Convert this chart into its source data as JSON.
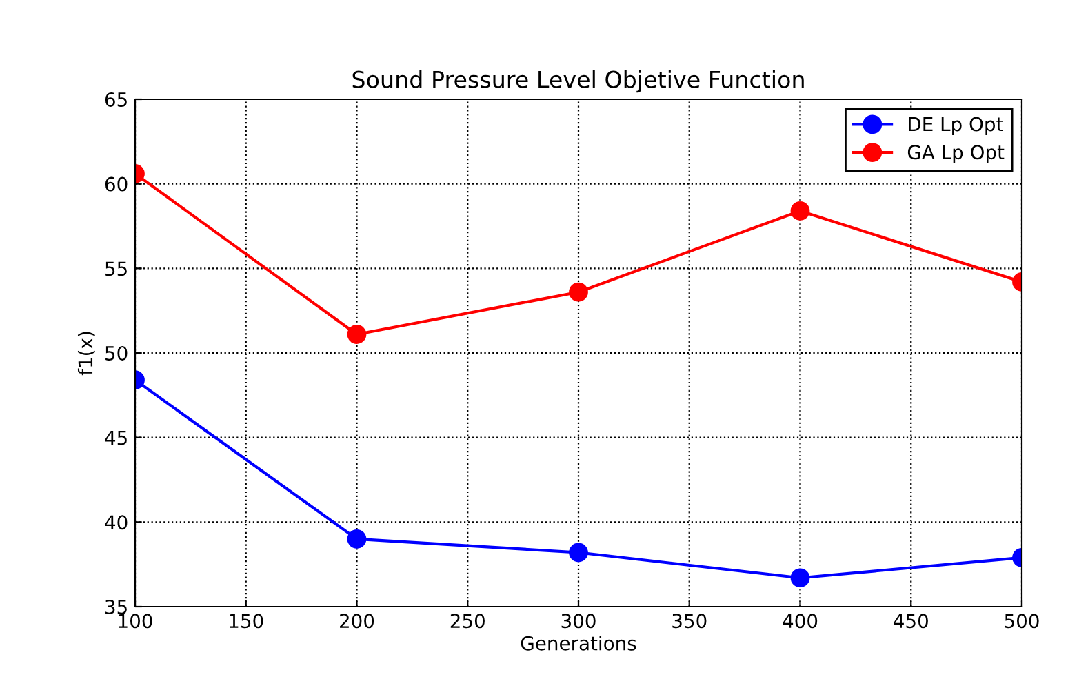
{
  "chart_data": {
    "type": "line",
    "title": "Sound Pressure Level Objetive Function",
    "xlabel": "Generations",
    "ylabel": "f1(x)",
    "x": [
      100,
      200,
      300,
      400,
      500
    ],
    "series": [
      {
        "name": "DE Lp Opt",
        "color": "#0000ff",
        "values": [
          48.4,
          39.0,
          38.2,
          36.7,
          37.9
        ]
      },
      {
        "name": "GA Lp Opt",
        "color": "#ff0000",
        "values": [
          60.6,
          51.1,
          53.6,
          58.4,
          54.2
        ]
      }
    ],
    "xlim": [
      100,
      500
    ],
    "xticks": [
      100,
      150,
      200,
      250,
      300,
      350,
      400,
      450,
      500
    ],
    "ylim": [
      35,
      65
    ],
    "yticks": [
      35,
      40,
      45,
      50,
      55,
      60,
      65
    ],
    "grid": true,
    "legend": "top right",
    "marker": "circle",
    "line_style": "solid"
  }
}
